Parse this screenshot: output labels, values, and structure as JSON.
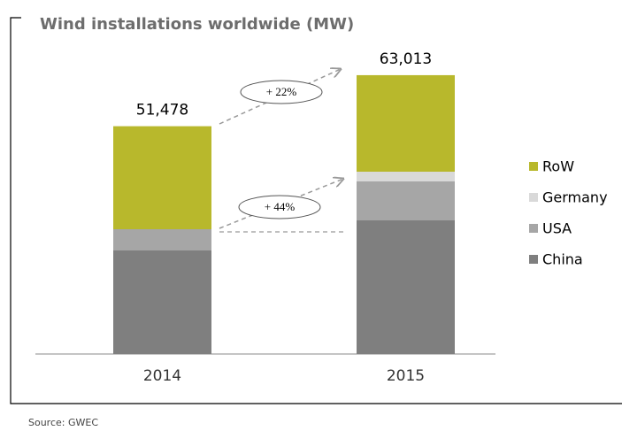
{
  "chart_data": {
    "type": "stacked_bar",
    "title": "Wind installations worldwide (MW)",
    "categories": [
      "2014",
      "2015"
    ],
    "series": [
      {
        "name": "China",
        "color": "#7f7f7f",
        "values": [
          23400,
          30200
        ]
      },
      {
        "name": "USA",
        "color": "#a6a6a6",
        "values": [
          4800,
          8800
        ]
      },
      {
        "name": "Germany",
        "color": "#d9d9d9",
        "values": [
          0,
          2200
        ]
      },
      {
        "name": "RoW",
        "color": "#b8b82c",
        "values": [
          23278,
          21813
        ]
      }
    ],
    "totals": [
      {
        "value": 51478,
        "label": "51,478"
      },
      {
        "value": 63013,
        "label": "63,013"
      }
    ],
    "annotations": [
      "+ 22%",
      "+ 44%"
    ],
    "ylim": [
      0,
      80000
    ],
    "source": "Source: GWEC"
  }
}
